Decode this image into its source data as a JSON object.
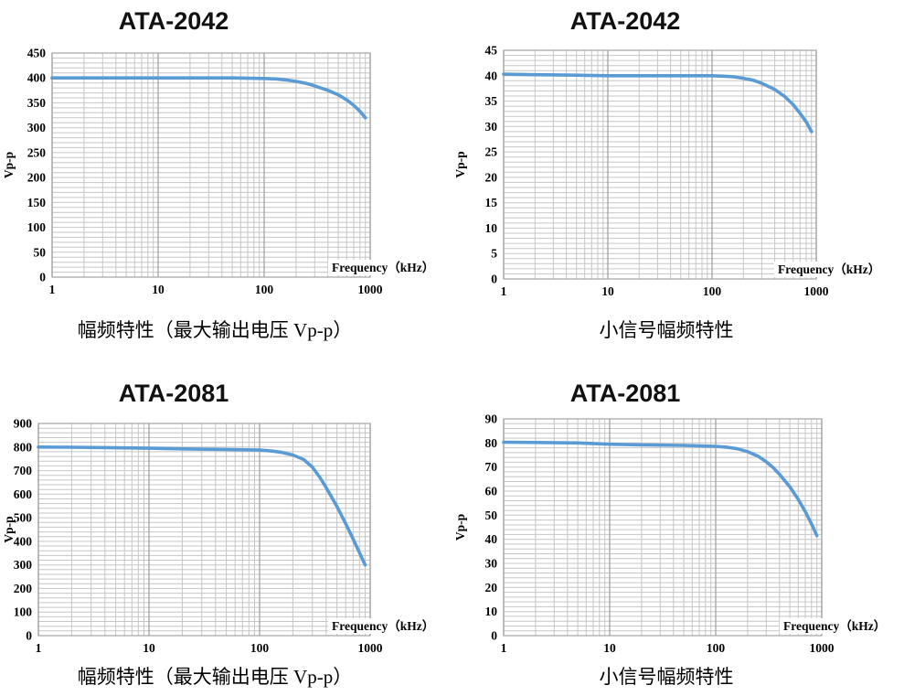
{
  "colors": {
    "curve": "#5b9bd5",
    "grid_minor": "#c6c6c6",
    "grid_major": "#a3a3a3",
    "text": "#000000",
    "title": "#111111",
    "background": "#ffffff"
  },
  "chart_data": [
    {
      "type": "line",
      "title": "ATA-2042",
      "caption": "幅频特性（最大输出电压 Vp-p）",
      "xlabel": "Frequency（kHz）",
      "ylabel": "Vp-p",
      "x_scale": "log",
      "xlim": [
        1,
        1000
      ],
      "x_ticks": [
        1,
        10,
        100,
        1000
      ],
      "ylim": [
        0,
        450
      ],
      "y_ticks": [
        0,
        50,
        100,
        150,
        200,
        250,
        300,
        350,
        400,
        450
      ],
      "y_major": 50,
      "y_minor": 10,
      "grid": true,
      "legend": false,
      "series": [
        {
          "name": "Max output voltage Vp-p",
          "color": "#5b9bd5",
          "points": [
            [
              1,
              400
            ],
            [
              2,
              400
            ],
            [
              5,
              400
            ],
            [
              10,
              400
            ],
            [
              20,
              400
            ],
            [
              50,
              400
            ],
            [
              100,
              399
            ],
            [
              130,
              398
            ],
            [
              160,
              396
            ],
            [
              200,
              393
            ],
            [
              250,
              389
            ],
            [
              300,
              384
            ],
            [
              400,
              375
            ],
            [
              500,
              366
            ],
            [
              600,
              356
            ],
            [
              700,
              345
            ],
            [
              800,
              333
            ],
            [
              900,
              320
            ]
          ]
        }
      ]
    },
    {
      "type": "line",
      "title": "ATA-2042",
      "caption": "小信号幅频特性",
      "xlabel": "Frequency（kHz）",
      "ylabel": "Vp-p",
      "x_scale": "log",
      "xlim": [
        1,
        1000
      ],
      "x_ticks": [
        1,
        10,
        100,
        1000
      ],
      "ylim": [
        0,
        45
      ],
      "y_ticks": [
        0,
        5,
        10,
        15,
        20,
        25,
        30,
        35,
        40,
        45
      ],
      "y_major": 5,
      "y_minor": 1,
      "grid": true,
      "legend": false,
      "series": [
        {
          "name": "Small-signal Vp-p",
          "color": "#5b9bd5",
          "points": [
            [
              1,
              40.3
            ],
            [
              2,
              40.2
            ],
            [
              5,
              40.1
            ],
            [
              10,
              40
            ],
            [
              20,
              40
            ],
            [
              50,
              40
            ],
            [
              100,
              40
            ],
            [
              130,
              39.9
            ],
            [
              160,
              39.8
            ],
            [
              200,
              39.5
            ],
            [
              250,
              39.1
            ],
            [
              300,
              38.5
            ],
            [
              400,
              37.3
            ],
            [
              500,
              35.9
            ],
            [
              600,
              34.3
            ],
            [
              700,
              32.6
            ],
            [
              800,
              30.9
            ],
            [
              900,
              29
            ]
          ]
        }
      ]
    },
    {
      "type": "line",
      "title": "ATA-2081",
      "caption": "幅频特性（最大输出电压 Vp-p）",
      "xlabel": "Frequency（kHz）",
      "ylabel": "Vp-p",
      "x_scale": "log",
      "xlim": [
        1,
        1000
      ],
      "x_ticks": [
        1,
        10,
        100,
        1000
      ],
      "ylim": [
        0,
        900
      ],
      "y_ticks": [
        0,
        100,
        200,
        300,
        400,
        500,
        600,
        700,
        800,
        900
      ],
      "y_major": 100,
      "y_minor": 20,
      "grid": true,
      "legend": false,
      "series": [
        {
          "name": "Max output voltage Vp-p",
          "color": "#5b9bd5",
          "points": [
            [
              1,
              800
            ],
            [
              2,
              799
            ],
            [
              5,
              797
            ],
            [
              10,
              795
            ],
            [
              20,
              792
            ],
            [
              50,
              790
            ],
            [
              100,
              787
            ],
            [
              130,
              783
            ],
            [
              160,
              777
            ],
            [
              200,
              766
            ],
            [
              250,
              747
            ],
            [
              300,
              715
            ],
            [
              350,
              672
            ],
            [
              400,
              628
            ],
            [
              500,
              548
            ],
            [
              600,
              475
            ],
            [
              700,
              410
            ],
            [
              800,
              352
            ],
            [
              900,
              300
            ]
          ]
        }
      ]
    },
    {
      "type": "line",
      "title": "ATA-2081",
      "caption": "小信号幅频特性",
      "xlabel": "Frequency（kHz）",
      "ylabel": "Vp-p",
      "x_scale": "log",
      "xlim": [
        1,
        1000
      ],
      "x_ticks": [
        1,
        10,
        100,
        1000
      ],
      "ylim": [
        0,
        90
      ],
      "y_ticks": [
        0,
        10,
        20,
        30,
        40,
        50,
        60,
        70,
        80,
        90
      ],
      "y_major": 10,
      "y_minor": 2,
      "grid": true,
      "legend": false,
      "series": [
        {
          "name": "Small-signal Vp-p",
          "color": "#5b9bd5",
          "points": [
            [
              1,
              80.3
            ],
            [
              2,
              80.2
            ],
            [
              5,
              80
            ],
            [
              10,
              79.5
            ],
            [
              20,
              79.2
            ],
            [
              50,
              79
            ],
            [
              100,
              78.6
            ],
            [
              130,
              78.2
            ],
            [
              160,
              77.6
            ],
            [
              200,
              76.4
            ],
            [
              250,
              74.5
            ],
            [
              300,
              72.2
            ],
            [
              350,
              69.7
            ],
            [
              400,
              67
            ],
            [
              500,
              61.8
            ],
            [
              600,
              56.6
            ],
            [
              700,
              51.5
            ],
            [
              800,
              46.4
            ],
            [
              900,
              41.5
            ]
          ]
        }
      ]
    }
  ]
}
